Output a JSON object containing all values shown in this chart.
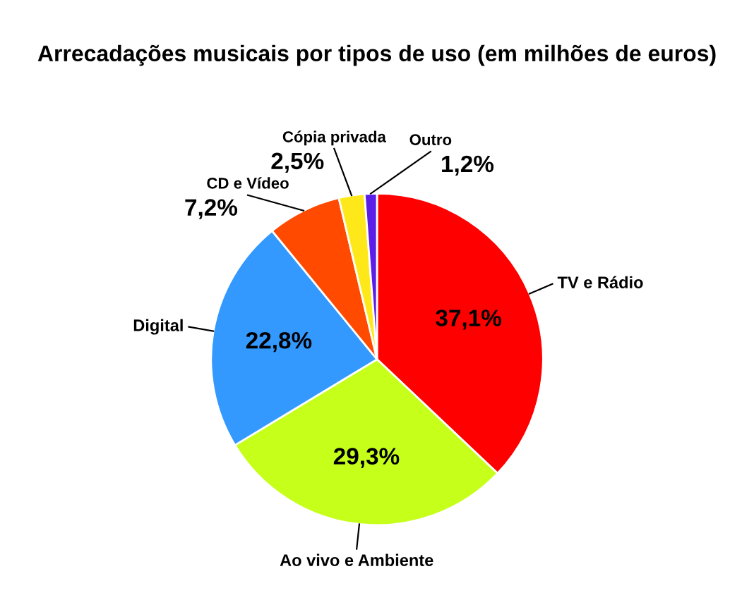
{
  "chart_data": {
    "type": "pie",
    "title": "Arrecadações musicais por tipos de uso (em milhões de euros)",
    "categories": [
      "TV e Rádio",
      "Ao vivo e Ambiente",
      "Digital",
      "CD e Vídeo",
      "Cópia privada",
      "Outro"
    ],
    "values": [
      37.1,
      29.3,
      22.8,
      7.2,
      2.5,
      1.2
    ],
    "value_labels": [
      "37,1%",
      "29,3%",
      "22,8%",
      "7,2%",
      "2,5%",
      "1,2%"
    ],
    "colors": [
      "#ff0000",
      "#c6ff1a",
      "#3399ff",
      "#ff4a00",
      "#ffe81a",
      "#5a1ee6"
    ],
    "legend": false
  }
}
